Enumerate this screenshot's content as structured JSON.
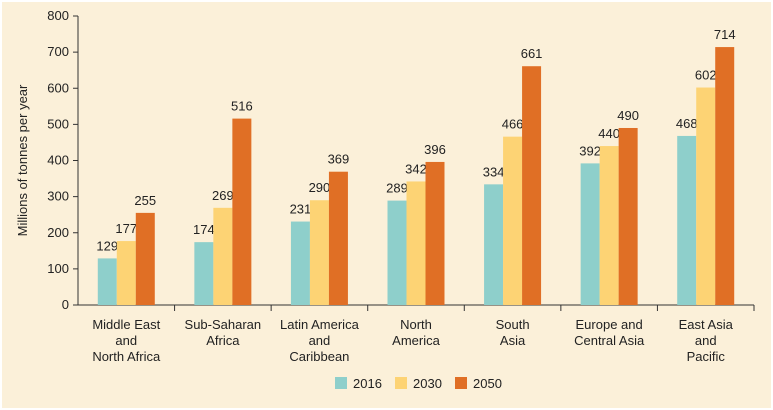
{
  "chart_data": {
    "type": "bar",
    "title": "",
    "xlabel": "",
    "ylabel": "Millions of tonnes per year",
    "ylim": [
      0,
      800
    ],
    "yticks": [
      0,
      100,
      200,
      300,
      400,
      500,
      600,
      700,
      800
    ],
    "categories": [
      [
        "Middle East",
        "and",
        "North Africa"
      ],
      [
        "Sub-Saharan",
        "Africa"
      ],
      [
        "Latin America",
        "and",
        "Caribbean"
      ],
      [
        "North",
        "America"
      ],
      [
        "South",
        "Asia"
      ],
      [
        "Europe and",
        "Central Asia"
      ],
      [
        "East Asia",
        "and",
        "Pacific"
      ]
    ],
    "series": [
      {
        "name": "2016",
        "color": "#8ecfcb",
        "values": [
          129,
          174,
          231,
          289,
          334,
          392,
          468
        ]
      },
      {
        "name": "2030",
        "color": "#fdd374",
        "values": [
          177,
          269,
          290,
          342,
          466,
          440,
          602
        ]
      },
      {
        "name": "2050",
        "color": "#e06f25",
        "values": [
          255,
          516,
          369,
          396,
          661,
          490,
          714
        ]
      }
    ],
    "grid": false,
    "legend": "bottom-center"
  }
}
